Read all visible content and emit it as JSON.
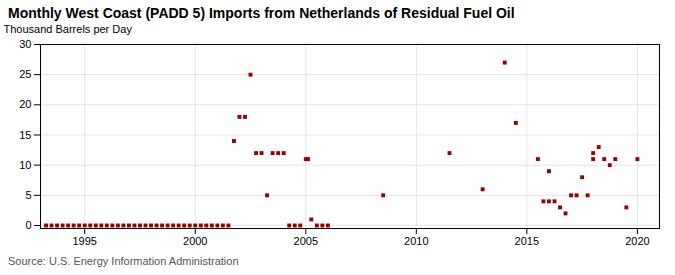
{
  "chart_data": {
    "type": "scatter",
    "title": "Monthly West Coast (PADD 5) Imports from Netherlands of Residual Fuel Oil",
    "ylabel": "Thousand Barrels per Day",
    "source": "Source: U.S. Energy Information Administration",
    "color": "#990000",
    "marker": "square",
    "grid": true,
    "xlim": [
      1993.0,
      2021.0
    ],
    "ylim": [
      -0.5,
      30
    ],
    "xticks": [
      1995,
      2000,
      2005,
      2010,
      2015,
      2020
    ],
    "yticks": [
      0,
      5,
      10,
      15,
      20,
      25,
      30
    ],
    "x": [
      1993.25,
      1993.5,
      1993.75,
      1994.0,
      1994.25,
      1994.5,
      1994.75,
      1995.0,
      1995.25,
      1995.5,
      1995.75,
      1996.0,
      1996.25,
      1996.5,
      1996.75,
      1997.0,
      1997.25,
      1997.5,
      1997.75,
      1998.0,
      1998.25,
      1998.5,
      1998.75,
      1999.0,
      1999.25,
      1999.5,
      1999.75,
      2000.0,
      2000.25,
      2000.5,
      2000.75,
      2001.0,
      2001.25,
      2001.5,
      2001.75,
      2002.0,
      2002.25,
      2002.5,
      2002.75,
      2003.0,
      2003.25,
      2003.5,
      2003.75,
      2004.0,
      2004.25,
      2004.5,
      2004.75,
      2005.0,
      2005.1,
      2005.25,
      2005.5,
      2005.75,
      2006.0,
      2008.5,
      2011.5,
      2013.0,
      2014.0,
      2014.5,
      2015.5,
      2015.75,
      2016.0,
      2016.0,
      2016.25,
      2016.5,
      2016.75,
      2017.0,
      2017.25,
      2017.5,
      2017.75,
      2018.0,
      2018.0,
      2018.25,
      2018.5,
      2018.75,
      2019.0,
      2019.5,
      2020.0
    ],
    "values": [
      0,
      0,
      0,
      0,
      0,
      0,
      0,
      0,
      0,
      0,
      0,
      0,
      0,
      0,
      0,
      0,
      0,
      0,
      0,
      0,
      0,
      0,
      0,
      0,
      0,
      0,
      0,
      0,
      0,
      0,
      0,
      0,
      0,
      0,
      14,
      18,
      18,
      25,
      12,
      12,
      5,
      12,
      12,
      12,
      0,
      0,
      0,
      11,
      11,
      1,
      0,
      0,
      0,
      5,
      12,
      6,
      27,
      17,
      11,
      4,
      9,
      4,
      4,
      3,
      2,
      5,
      5,
      8,
      5,
      12,
      11,
      13,
      11,
      10,
      11,
      3,
      11
    ]
  }
}
